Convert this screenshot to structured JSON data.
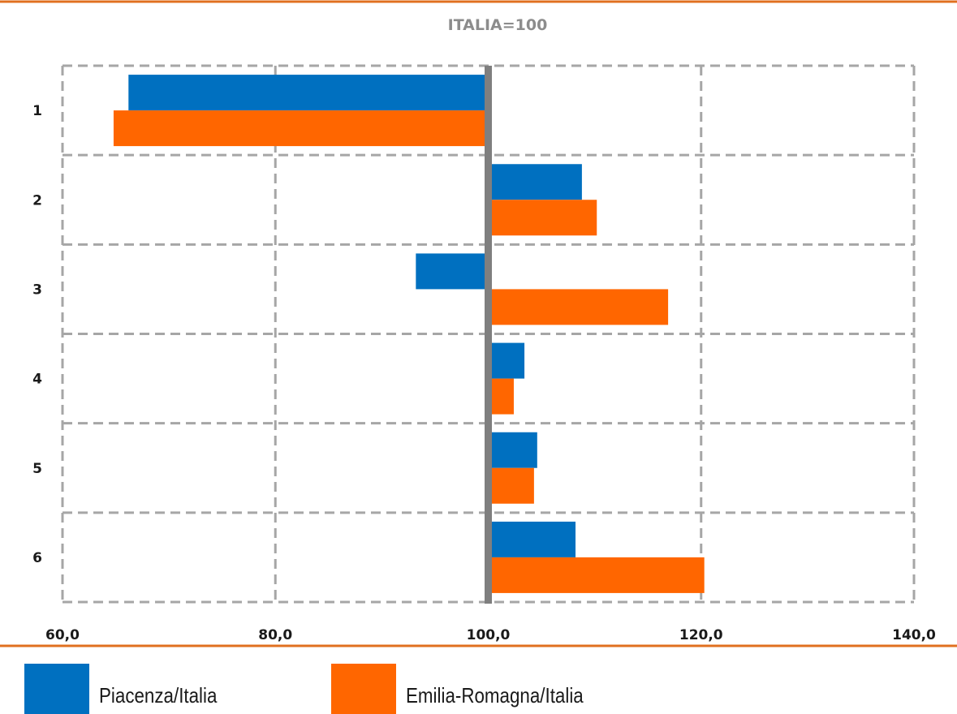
{
  "chart_data": {
    "type": "bar",
    "orientation": "horizontal",
    "title": "ITALIA=100",
    "categories": [
      "1",
      "2",
      "3",
      "4",
      "5",
      "6"
    ],
    "reference_value": 100,
    "xlim": [
      60,
      140
    ],
    "xticks": [
      "60,0",
      "80,0",
      "100,0",
      "120,0",
      "140,0"
    ],
    "xtick_values": [
      60,
      80,
      100,
      120,
      140
    ],
    "grid": true,
    "legend_position": "bottom",
    "series": [
      {
        "name": "Piacenza/Italia",
        "color": "#0070C0",
        "values": [
          66.2,
          108.8,
          93.2,
          103.4,
          104.6,
          108.2
        ]
      },
      {
        "name": "Emilia-Romagna/Italia",
        "color": "#FF6600",
        "values": [
          64.8,
          110.2,
          116.9,
          102.4,
          104.3,
          120.3
        ]
      }
    ]
  },
  "colors": {
    "rule": "#E07020",
    "grid": "#A6A6A6",
    "axis": "#7F7F7F"
  }
}
